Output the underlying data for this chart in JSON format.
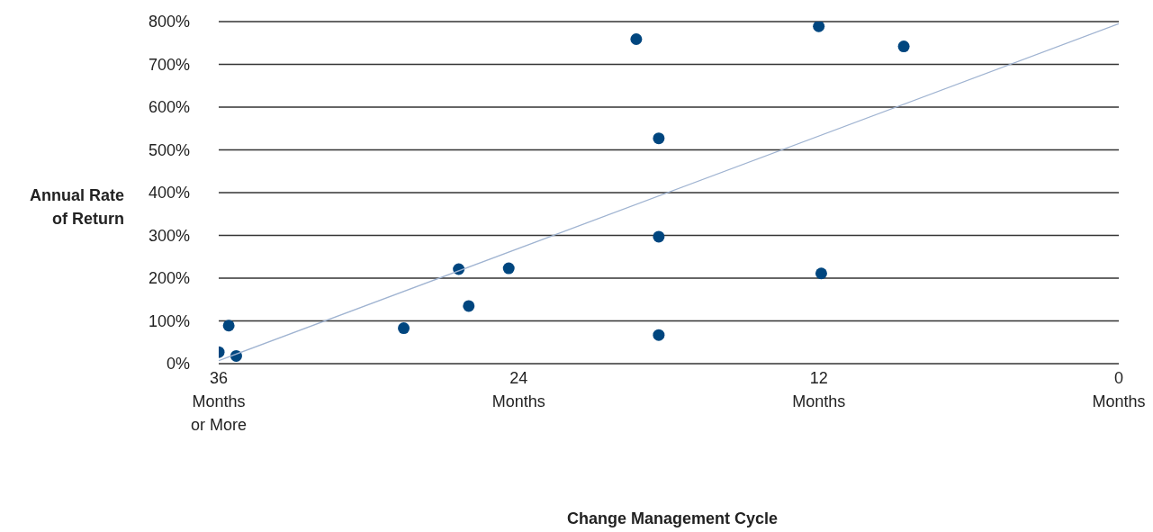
{
  "chart_data": {
    "type": "scatter",
    "xlabel": "Change Management Cycle",
    "ylabel": "Annual Rate\nof Return",
    "xlim": [
      36,
      0
    ],
    "xticks": [
      {
        "value": 36,
        "label": "36\nMonths\nor More"
      },
      {
        "value": 24,
        "label": "24\nMonths"
      },
      {
        "value": 12,
        "label": "12\nMonths"
      },
      {
        "value": 0,
        "label": "0\nMonths"
      }
    ],
    "ylim": [
      0,
      800
    ],
    "yticks": [
      {
        "value": 0,
        "label": "0%"
      },
      {
        "value": 100,
        "label": "100%"
      },
      {
        "value": 200,
        "label": "200%"
      },
      {
        "value": 300,
        "label": "300%"
      },
      {
        "value": 400,
        "label": "400%"
      },
      {
        "value": 500,
        "label": "500%"
      },
      {
        "value": 600,
        "label": "600%"
      },
      {
        "value": 700,
        "label": "700%"
      },
      {
        "value": 800,
        "label": "800%"
      }
    ],
    "grid": "y",
    "marker": "circle",
    "series": [
      {
        "type": "scatter",
        "color": "#00467f",
        "x": [
          36,
          35.6,
          35.3,
          28.6,
          26.4,
          26.0,
          24.4,
          19.3,
          18.4,
          18.4,
          18.4,
          12,
          11.9,
          8.6
        ],
        "values": [
          27,
          89,
          18,
          83,
          221,
          135,
          223,
          759,
          527,
          297,
          67,
          789,
          211,
          742
        ]
      },
      {
        "type": "line",
        "color": "#9fb3d1",
        "marker": "none",
        "x": [
          36,
          0
        ],
        "values": [
          7,
          795
        ]
      }
    ]
  }
}
